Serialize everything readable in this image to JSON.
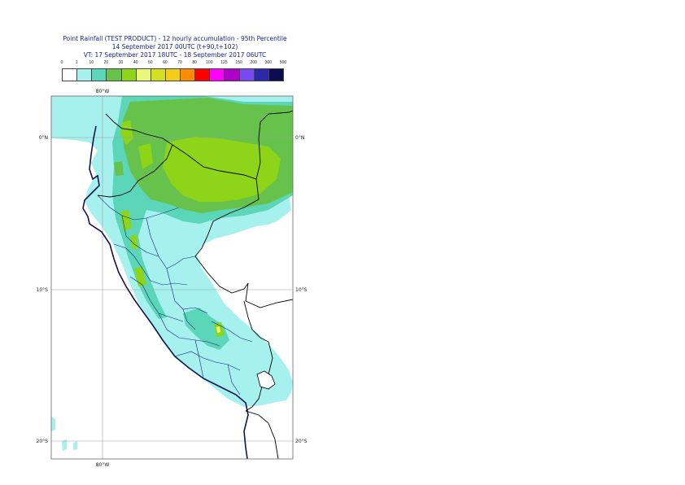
{
  "header": {
    "line1": "Point Rainfall (TEST PRODUCT) - 12 hourly accumulation - 95th Percentile",
    "line2": "14 September 2017 00UTC (t+90,t+102)",
    "line3": "VT: 17 September 2017 18UTC - 18 September 2017 06UTC"
  },
  "legend": {
    "thresholds": [
      "0",
      "1",
      "10",
      "20",
      "30",
      "40",
      "50",
      "60",
      "70",
      "80",
      "100",
      "125",
      "150",
      "200",
      "300",
      "500"
    ],
    "colors": [
      "#ffffff",
      "#a6f0ee",
      "#5cd6b8",
      "#66c24a",
      "#8ed418",
      "#e8f878",
      "#d2e020",
      "#f2cc18",
      "#ff8c00",
      "#ff0000",
      "#ff00ff",
      "#b000c8",
      "#7848f0",
      "#2a2aa8",
      "#0c0c50"
    ]
  },
  "map": {
    "lon_labels": [
      "80°W",
      "80°W"
    ],
    "lat_labels": [
      "0°N",
      "0°N",
      "10°S",
      "10°S",
      "20°S",
      "20°S"
    ]
  },
  "colors": {
    "light": "#a6f0ee",
    "medium": "#66c24a",
    "heavy": "#8ed418",
    "teal": "#5cd6b8",
    "yellow": "#e8f878",
    "land": "#ffffff",
    "grid": "#9e9e9e",
    "coast": "#141450",
    "border": "#000000"
  }
}
